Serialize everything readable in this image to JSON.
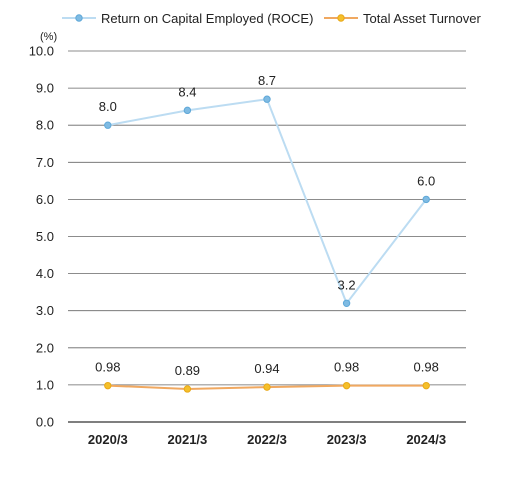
{
  "chart_data": {
    "type": "line",
    "categories": [
      "2020/3",
      "2021/3",
      "2022/3",
      "2023/3",
      "2024/3"
    ],
    "ylabel": "(%)",
    "ylim": [
      0,
      10
    ],
    "yticks": [
      "0.0",
      "1.0",
      "2.0",
      "3.0",
      "4.0",
      "5.0",
      "6.0",
      "7.0",
      "8.0",
      "9.0",
      "10.0"
    ],
    "grid": true,
    "legend_position": "top",
    "series": [
      {
        "name": "Return on Capital Employed (ROCE)",
        "values": [
          8.0,
          8.4,
          8.7,
          3.2,
          6.0
        ],
        "labels": [
          "8.0",
          "8.4",
          "8.7",
          "3.2",
          "6.0"
        ],
        "line_color": "#bcdcf2",
        "marker_color": "#5fa8d8"
      },
      {
        "name": "Total Asset Turnover",
        "values": [
          0.98,
          0.89,
          0.94,
          0.98,
          0.98
        ],
        "labels": [
          "0.98",
          "0.89",
          "0.94",
          "0.98",
          "0.98"
        ],
        "line_color": "#f0a860",
        "marker_color": "#f5c02a"
      }
    ]
  }
}
